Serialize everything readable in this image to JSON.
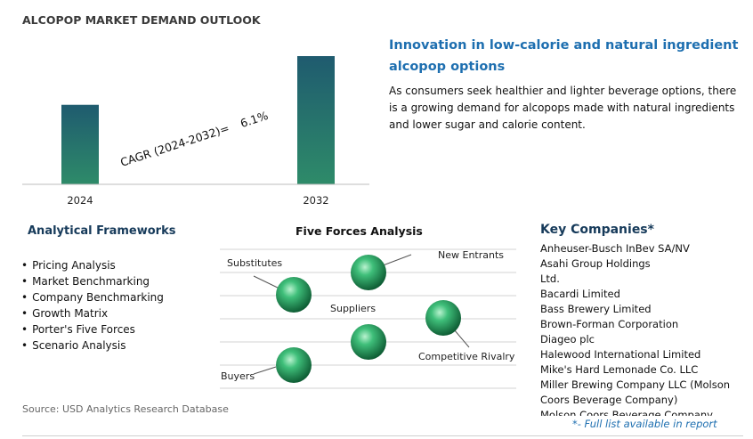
{
  "page": {
    "title": "ALCOPOP MARKET DEMAND OUTLOOK",
    "source": "Source: USD Analytics Research Database"
  },
  "colors": {
    "bar_top": "#1f5b6f",
    "bar_bottom": "#2e8b69",
    "headline": "#1e6fb0",
    "section_title": "#163a5a",
    "sphere": "#2fa86a"
  },
  "chart_data": {
    "type": "bar",
    "categories": [
      "2024",
      "2032"
    ],
    "values": [
      0.62,
      1.0
    ],
    "value_note_scale": "relative",
    "annotation": {
      "label": "CAGR (2024-2032)=",
      "value": "6.1%"
    },
    "ylim": [
      0,
      1.0
    ],
    "grid": false,
    "title": "",
    "xlabel": "",
    "ylabel": ""
  },
  "highlight": {
    "headline": "Innovation in low-calorie and natural ingredient alcopop options",
    "body": "As consumers seek healthier and lighter beverage options, there is a growing demand for alcopops made with natural ingredients and lower sugar and calorie content."
  },
  "frameworks": {
    "title": "Analytical Frameworks",
    "items": [
      "Pricing Analysis",
      "Market Benchmarking",
      "Company Benchmarking",
      "Growth Matrix",
      "Porter's Five Forces",
      "Scenario Analysis"
    ]
  },
  "five_forces": {
    "title": "Five Forces Analysis",
    "forces": [
      "Substitutes",
      "New Entrants",
      "Suppliers",
      "Competitive Rivalry",
      "Buyers"
    ]
  },
  "companies": {
    "title": "Key Companies*",
    "items": [
      "Anheuser-Busch InBev SA/NV",
      "Asahi Group Holdings",
      "Ltd.",
      "Bacardi Limited",
      "Bass Brewery Limited",
      "Brown-Forman Corporation",
      "Diageo plc",
      "Halewood International Limited",
      "Mike's Hard Lemonade Co. LLC",
      "Miller Brewing Company LLC (Molson",
      "Coors Beverage Company)",
      "Molson Coors Beverage Company"
    ],
    "footnote": "*- Full list available in report"
  }
}
